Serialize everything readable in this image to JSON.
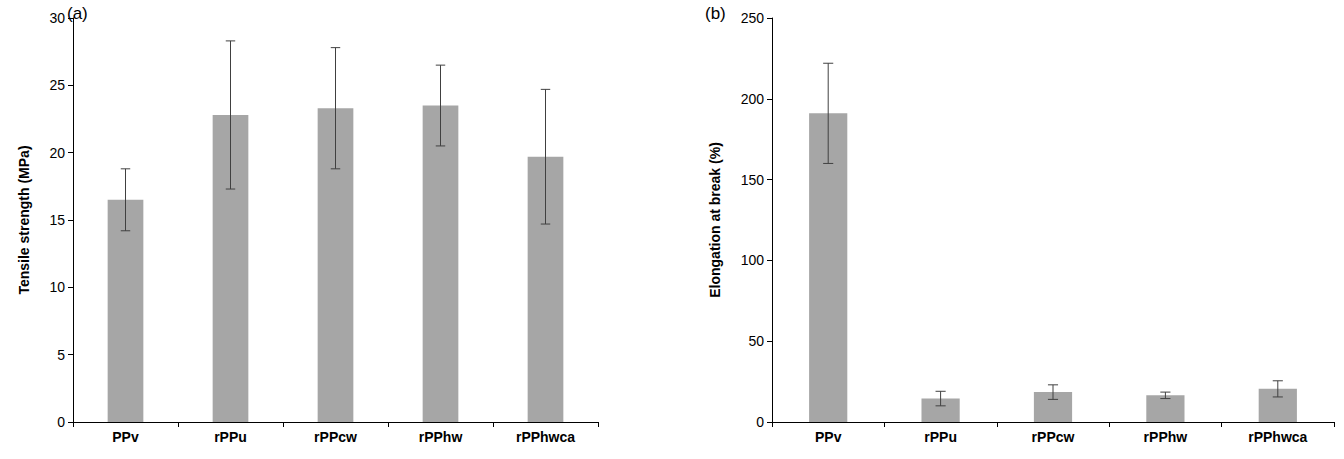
{
  "chart_data": [
    {
      "type": "bar",
      "title": "(a)",
      "y_label": "Tensile strength (MPa)",
      "categories": [
        "PPv",
        "rPPu",
        "rPPcw",
        "rPPhw",
        "rPPhwca"
      ],
      "values": [
        16.5,
        22.8,
        23.3,
        23.5,
        19.7
      ],
      "errors": [
        2.3,
        5.5,
        4.5,
        3.0,
        5.0
      ],
      "color": "#a6a6a6",
      "ylim": [
        0,
        30
      ],
      "yticks": [
        0,
        5,
        10,
        15,
        20,
        25,
        30
      ],
      "grid": false
    },
    {
      "type": "bar",
      "title": "(b)",
      "y_label": "Elongation at break (%)",
      "categories": [
        "PPv",
        "rPPu",
        "rPPcw",
        "rPPhw",
        "rPPhwca"
      ],
      "values": [
        191,
        14.5,
        18.5,
        16.5,
        20.5
      ],
      "errors": [
        31,
        4.5,
        4.5,
        2,
        5
      ],
      "color": "#a6a6a6",
      "ylim": [
        0,
        250
      ],
      "yticks": [
        0,
        50,
        100,
        150,
        200,
        250
      ],
      "grid": false
    }
  ]
}
